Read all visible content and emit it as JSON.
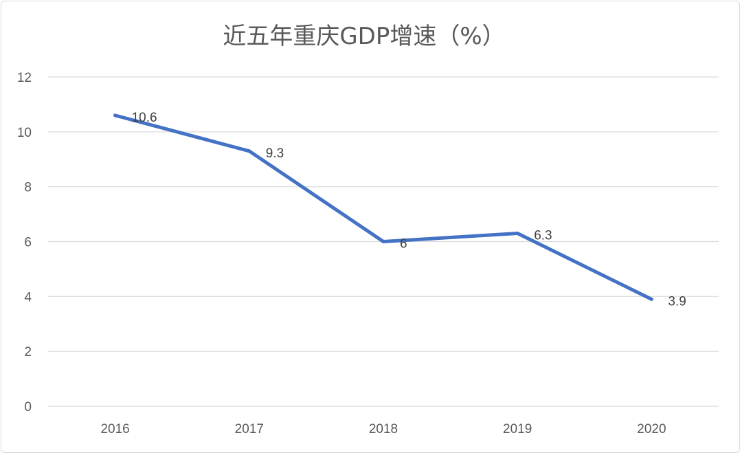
{
  "chart_data": {
    "type": "line",
    "title": "近五年重庆GDP增速（%）",
    "xlabel": "",
    "ylabel": "",
    "categories": [
      "2016",
      "2017",
      "2018",
      "2019",
      "2020"
    ],
    "series": [
      {
        "values": [
          10.6,
          9.3,
          6,
          6.3,
          3.9
        ],
        "data_labels": [
          "10.6",
          "9.3",
          "6",
          "6.3",
          "3.9"
        ]
      }
    ],
    "ylim": [
      0,
      12
    ],
    "yticks": [
      "0",
      "2",
      "4",
      "6",
      "8",
      "10",
      "12"
    ],
    "grid": "horizontal",
    "legend": "none",
    "colors": {
      "line": "#4472c4",
      "grid": "#d9d9d9",
      "text": "#595959"
    }
  }
}
